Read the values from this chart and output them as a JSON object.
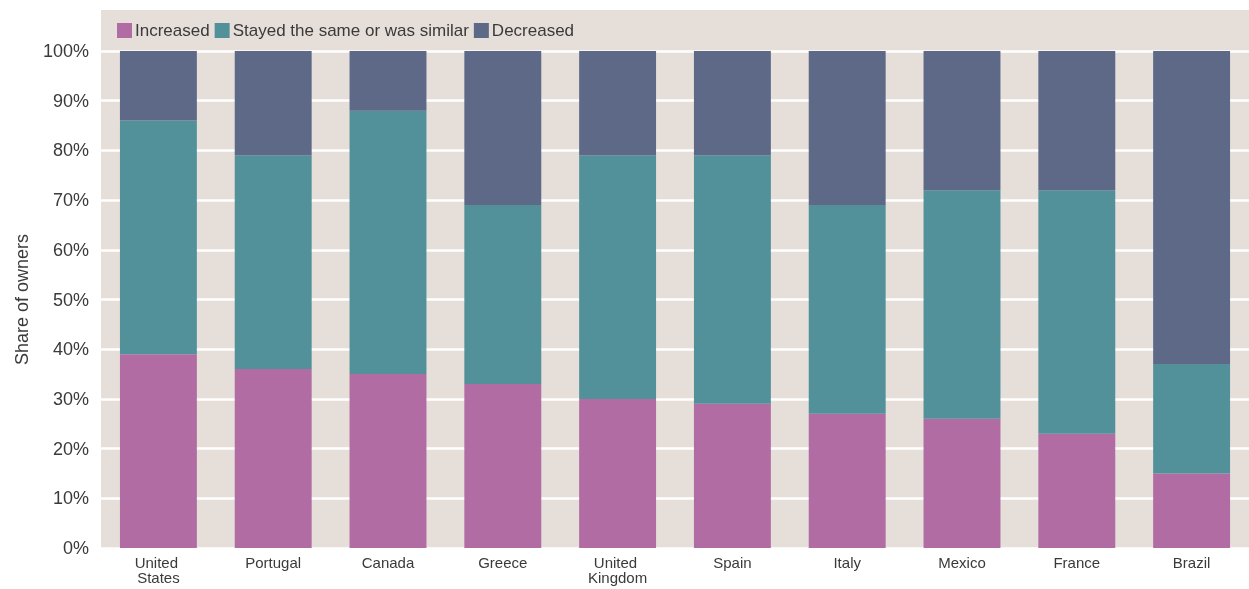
{
  "chart_data": {
    "type": "bar",
    "stacked": true,
    "ylabel": "Share of owners",
    "categories": [
      "United States",
      "Portugal",
      "Canada",
      "Greece",
      "United Kingdom",
      "Spain",
      "Italy",
      "Mexico",
      "France",
      "Brazil"
    ],
    "series": [
      {
        "name": "Increased",
        "color": "#b06ca3",
        "values": [
          39,
          36,
          35,
          33,
          30,
          29,
          27,
          26,
          23,
          15
        ]
      },
      {
        "name": "Stayed the same or was similar",
        "color": "#52919a",
        "values": [
          47,
          43,
          53,
          36,
          49,
          50,
          42,
          46,
          49,
          22
        ]
      },
      {
        "name": "Decreased",
        "color": "#5e6988",
        "values": [
          14,
          21,
          12,
          31,
          21,
          21,
          31,
          28,
          28,
          63
        ]
      }
    ],
    "ylim": [
      0,
      100
    ],
    "yticks": [
      {
        "value": 0,
        "label": "0%"
      },
      {
        "value": 10,
        "label": "10%"
      },
      {
        "value": 20,
        "label": "20%"
      },
      {
        "value": 30,
        "label": "30%"
      },
      {
        "value": 40,
        "label": "40%"
      },
      {
        "value": 50,
        "label": "50%"
      },
      {
        "value": 60,
        "label": "60%"
      },
      {
        "value": 70,
        "label": "70%"
      },
      {
        "value": 80,
        "label": "80%"
      },
      {
        "value": 90,
        "label": "90%"
      },
      {
        "value": 100,
        "label": "100%"
      }
    ],
    "grid": "y",
    "legend": "top left"
  }
}
